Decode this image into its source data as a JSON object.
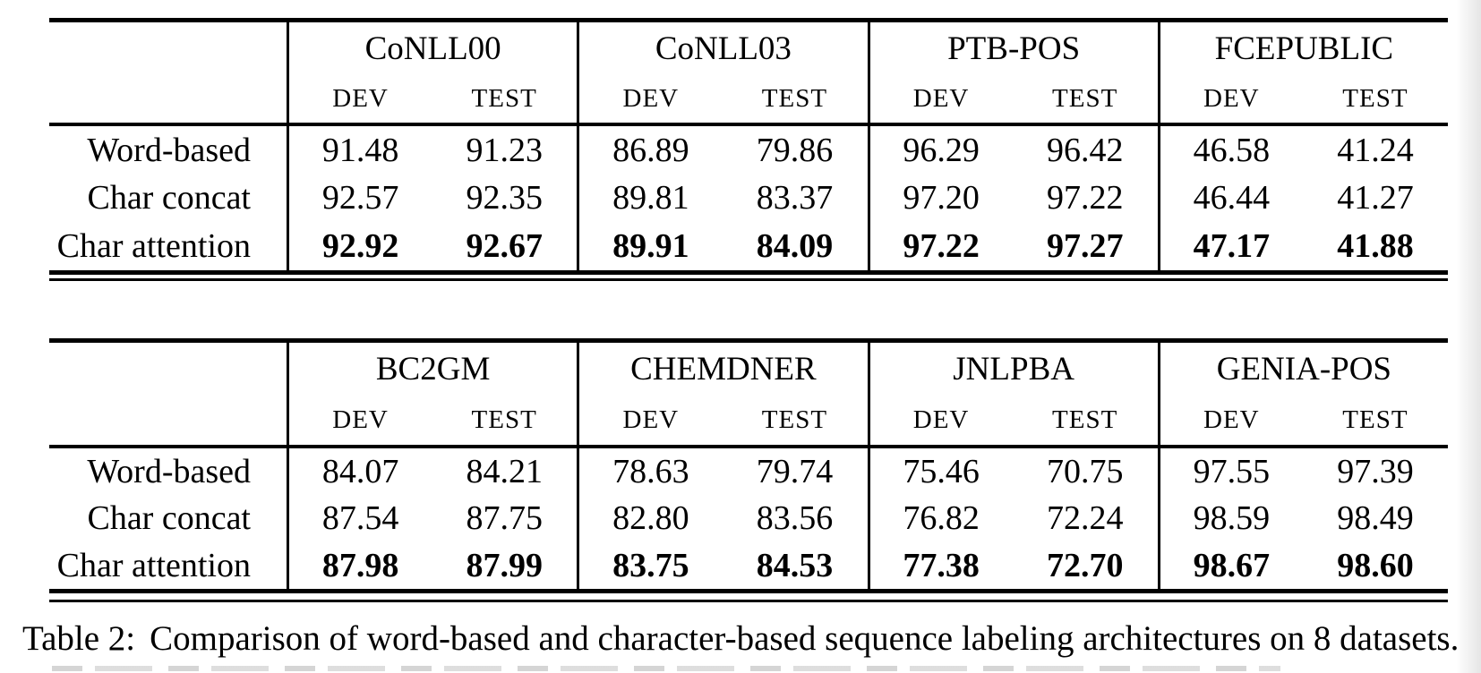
{
  "col_labels": {
    "dev": "DEV",
    "test": "TEST"
  },
  "caption": {
    "label": "Table 2:",
    "text": "Comparison of word-based and character-based sequence labeling architectures on 8 datasets."
  },
  "tables": [
    {
      "groups": [
        "CoNLL00",
        "CoNLL03",
        "PTB-POS",
        "FCEPUBLIC"
      ],
      "rows": [
        {
          "label": "Word-based",
          "bold": false,
          "values": [
            "91.48",
            "91.23",
            "86.89",
            "79.86",
            "96.29",
            "96.42",
            "46.58",
            "41.24"
          ]
        },
        {
          "label": "Char concat",
          "bold": false,
          "values": [
            "92.57",
            "92.35",
            "89.81",
            "83.37",
            "97.20",
            "97.22",
            "46.44",
            "41.27"
          ]
        },
        {
          "label": "Char attention",
          "bold": true,
          "values": [
            "92.92",
            "92.67",
            "89.91",
            "84.09",
            "97.22",
            "97.27",
            "47.17",
            "41.88"
          ]
        }
      ]
    },
    {
      "groups": [
        "BC2GM",
        "CHEMDNER",
        "JNLPBA",
        "GENIA-POS"
      ],
      "rows": [
        {
          "label": "Word-based",
          "bold": false,
          "values": [
            "84.07",
            "84.21",
            "78.63",
            "79.74",
            "75.46",
            "70.75",
            "97.55",
            "97.39"
          ]
        },
        {
          "label": "Char concat",
          "bold": false,
          "values": [
            "87.54",
            "87.75",
            "82.80",
            "83.56",
            "76.82",
            "72.24",
            "98.59",
            "98.49"
          ]
        },
        {
          "label": "Char attention",
          "bold": true,
          "values": [
            "87.98",
            "87.99",
            "83.75",
            "84.53",
            "77.38",
            "72.70",
            "98.67",
            "98.60"
          ]
        }
      ]
    }
  ]
}
